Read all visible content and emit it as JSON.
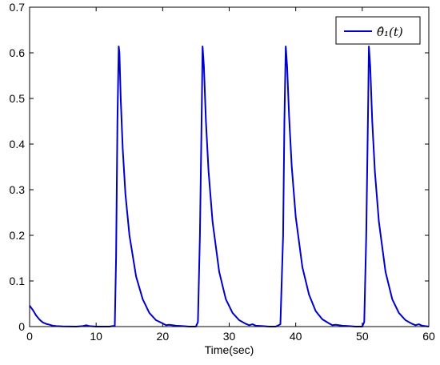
{
  "chart_data": {
    "type": "line",
    "title": "",
    "xlabel": "Time(sec)",
    "ylabel": "",
    "xlim": [
      0,
      60
    ],
    "ylim": [
      0,
      0.7
    ],
    "xticks": [
      0,
      10,
      20,
      30,
      40,
      50,
      60
    ],
    "yticks": [
      0,
      0.1,
      0.2,
      0.3,
      0.4,
      0.5,
      0.6,
      0.7
    ],
    "grid": false,
    "legend_position": "top-right",
    "series": [
      {
        "name": "θ̂₁(t)",
        "color": "#0000cc",
        "x": [
          0,
          0.5,
          1,
          1.5,
          2,
          2.5,
          3,
          3.5,
          4,
          5,
          6,
          7,
          8,
          8.5,
          9,
          10,
          11,
          12,
          12.8,
          13.0,
          13.2,
          13.4,
          13.5,
          13.7,
          14,
          14.4,
          15,
          16,
          17,
          18,
          19,
          20,
          20.5,
          21,
          22,
          23,
          24,
          25,
          25.3,
          25.6,
          25.9,
          26.0,
          26.2,
          26.5,
          26.9,
          27.5,
          28.5,
          29.5,
          30.5,
          31.5,
          32.5,
          33,
          33.5,
          34,
          35,
          36,
          37,
          37.7,
          38.1,
          38.3,
          38.5,
          38.7,
          39.0,
          39.4,
          40,
          41,
          42,
          43,
          44,
          45,
          45.5,
          46,
          47,
          48,
          49,
          50,
          50.3,
          50.6,
          50.9,
          51.0,
          51.2,
          51.5,
          51.9,
          52.5,
          53.5,
          54.5,
          55.5,
          56.5,
          57.5,
          58,
          58.5,
          59,
          60
        ],
        "y": [
          0.046,
          0.036,
          0.024,
          0.015,
          0.009,
          0.006,
          0.004,
          0.002,
          0.001,
          0.0003,
          0.0001,
          0,
          0.001,
          0.003,
          0.001,
          0,
          0,
          0,
          0.002,
          0.15,
          0.45,
          0.614,
          0.6,
          0.5,
          0.39,
          0.29,
          0.2,
          0.11,
          0.06,
          0.03,
          0.014,
          0.007,
          0.003,
          0.004,
          0.002,
          0.001,
          0,
          0,
          0.01,
          0.2,
          0.5,
          0.614,
          0.57,
          0.45,
          0.34,
          0.23,
          0.12,
          0.06,
          0.03,
          0.014,
          0.006,
          0.003,
          0.005,
          0.002,
          0.001,
          0,
          0,
          0.005,
          0.2,
          0.45,
          0.614,
          0.57,
          0.46,
          0.35,
          0.24,
          0.13,
          0.07,
          0.034,
          0.016,
          0.007,
          0.003,
          0.004,
          0.002,
          0.001,
          0,
          0,
          0.01,
          0.2,
          0.5,
          0.614,
          0.57,
          0.45,
          0.34,
          0.23,
          0.12,
          0.06,
          0.03,
          0.014,
          0.006,
          0.003,
          0.005,
          0.002,
          0
        ]
      }
    ]
  }
}
